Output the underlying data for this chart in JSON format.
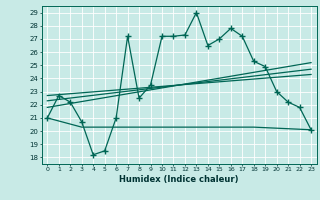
{
  "title": "",
  "xlabel": "Humidex (Indice chaleur)",
  "bg_color": "#c8eae6",
  "grid_color": "#b0d8d2",
  "line_color": "#006655",
  "xlim": [
    -0.5,
    23.5
  ],
  "ylim": [
    17.5,
    29.5
  ],
  "xticks": [
    0,
    1,
    2,
    3,
    4,
    5,
    6,
    7,
    8,
    9,
    10,
    11,
    12,
    13,
    14,
    15,
    16,
    17,
    18,
    19,
    20,
    21,
    22,
    23
  ],
  "yticks": [
    18,
    19,
    20,
    21,
    22,
    23,
    24,
    25,
    26,
    27,
    28,
    29
  ],
  "main_x": [
    0,
    1,
    2,
    3,
    4,
    5,
    6,
    7,
    8,
    9,
    10,
    11,
    12,
    13,
    14,
    15,
    16,
    17,
    18,
    19,
    20,
    21,
    22,
    23
  ],
  "main_y": [
    21.0,
    22.7,
    22.2,
    20.7,
    18.2,
    18.5,
    21.0,
    27.2,
    22.5,
    23.5,
    27.2,
    27.2,
    27.3,
    29.0,
    26.5,
    27.0,
    27.8,
    27.2,
    25.3,
    24.9,
    23.0,
    22.2,
    21.8,
    20.1
  ],
  "flat_x": [
    0,
    3,
    4,
    5,
    6,
    7,
    8,
    9,
    10,
    11,
    12,
    13,
    14,
    15,
    16,
    17,
    18,
    23
  ],
  "flat_y": [
    21.0,
    20.3,
    20.3,
    20.3,
    20.3,
    20.3,
    20.3,
    20.3,
    20.3,
    20.3,
    20.3,
    20.3,
    20.3,
    20.3,
    20.3,
    20.3,
    20.3,
    20.1
  ],
  "trend1_x": [
    0,
    23
  ],
  "trend1_y": [
    21.8,
    25.2
  ],
  "trend2_x": [
    0,
    23
  ],
  "trend2_y": [
    22.3,
    24.7
  ],
  "trend3_x": [
    0,
    23
  ],
  "trend3_y": [
    22.7,
    24.3
  ]
}
